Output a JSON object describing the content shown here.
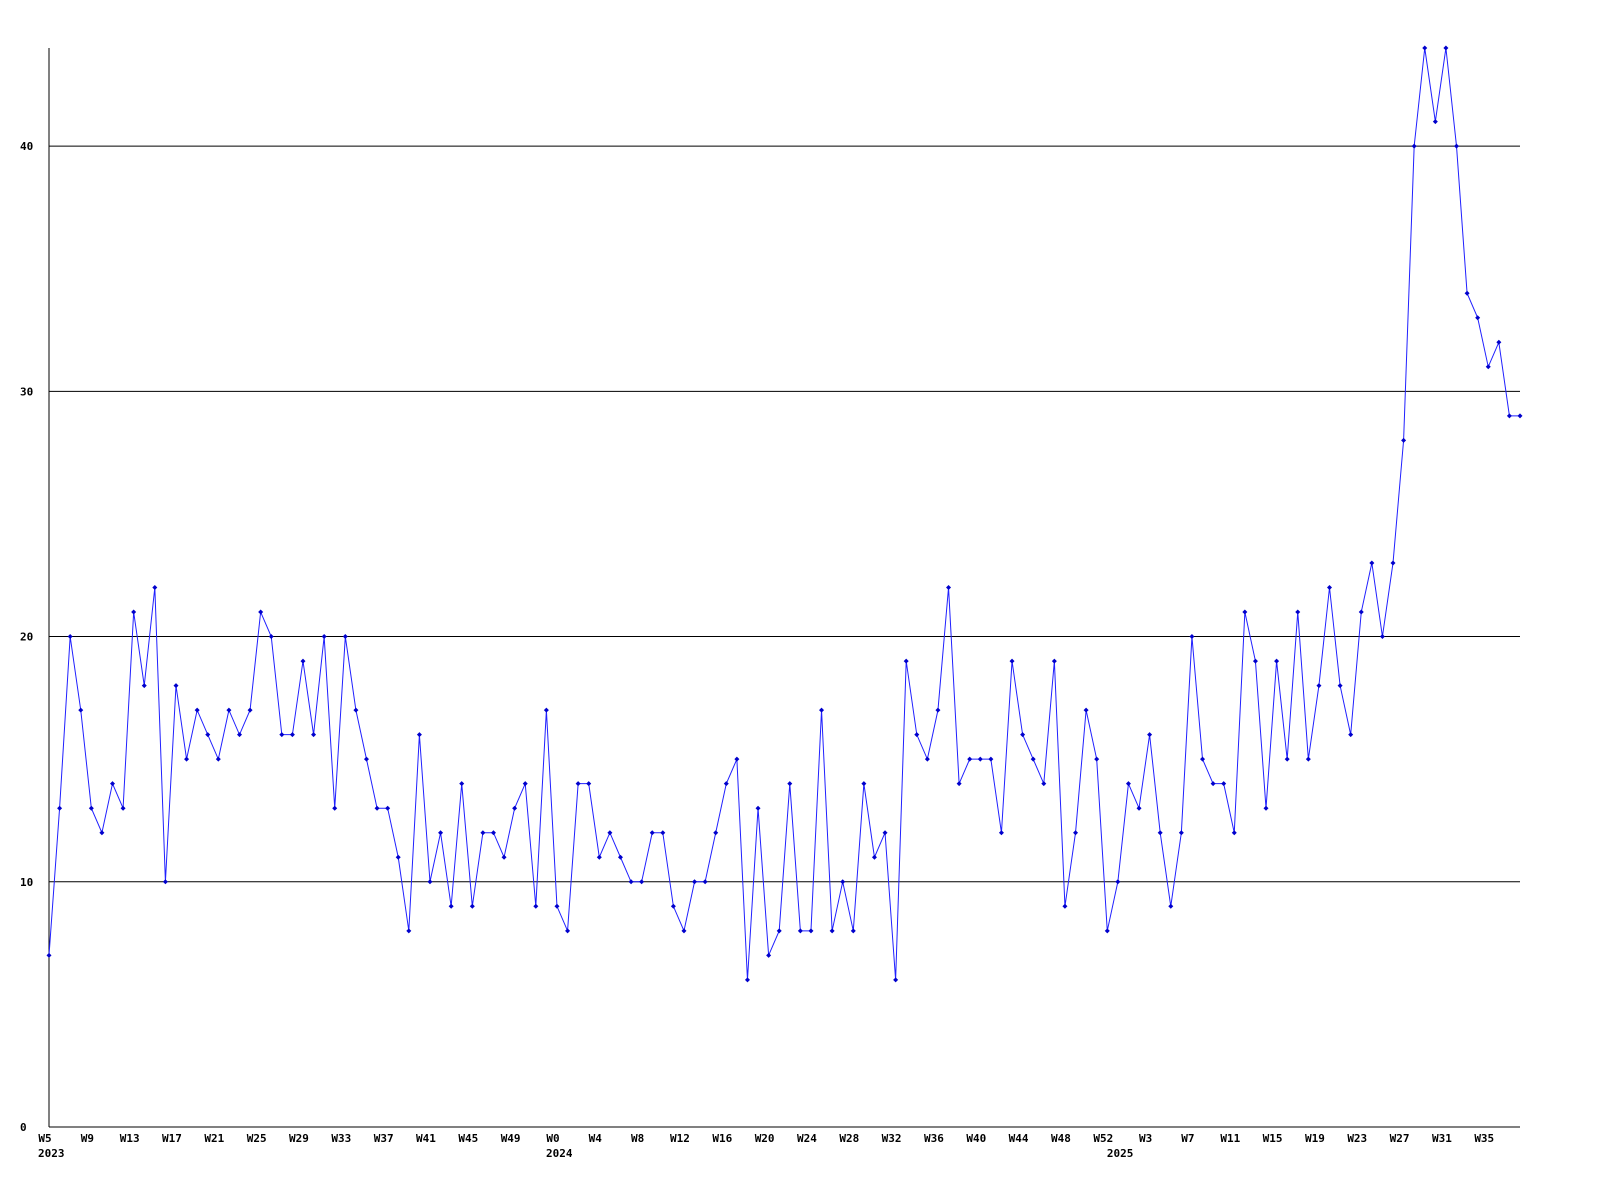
{
  "chart_data": {
    "type": "line",
    "categories": [
      "W5",
      null,
      null,
      null,
      "W9",
      null,
      null,
      null,
      "W13",
      null,
      null,
      null,
      "W17",
      null,
      null,
      null,
      "W21",
      null,
      null,
      null,
      "W25",
      null,
      null,
      null,
      "W29",
      null,
      null,
      null,
      "W33",
      null,
      null,
      null,
      "W37",
      null,
      null,
      null,
      "W41",
      null,
      null,
      null,
      "W45",
      null,
      null,
      null,
      "W49",
      null,
      null,
      null,
      "W0",
      null,
      null,
      null,
      "W4",
      null,
      null,
      null,
      "W8",
      null,
      null,
      null,
      "W12",
      null,
      null,
      null,
      "W16",
      null,
      null,
      null,
      "W20",
      null,
      null,
      null,
      "W24",
      null,
      null,
      null,
      "W28",
      null,
      null,
      null,
      "W32",
      null,
      null,
      null,
      "W36",
      null,
      null,
      null,
      "W40",
      null,
      null,
      null,
      "W44",
      null,
      null,
      null,
      "W48",
      null,
      null,
      null,
      "W52",
      null,
      null,
      null,
      "W3",
      null,
      null,
      null,
      "W7",
      null,
      null,
      null,
      "W11",
      null,
      null,
      null,
      "W15",
      null,
      null,
      null,
      "W19",
      null,
      null,
      null,
      "W23",
      null,
      null,
      null,
      "W27",
      null,
      null,
      null,
      "W31",
      null,
      null,
      null,
      "W35",
      null,
      null,
      null
    ],
    "year_labels": [
      {
        "at": 0,
        "label": "2023"
      },
      {
        "at": 48,
        "label": "2024"
      },
      {
        "at": 101,
        "label": "2025"
      }
    ],
    "series": [
      {
        "color": "#2020ff",
        "values": [
          7,
          13,
          20,
          17,
          13,
          12,
          14,
          13,
          21,
          18,
          22,
          10,
          18,
          15,
          17,
          16,
          15,
          17,
          16,
          17,
          21,
          20,
          16,
          16,
          19,
          16,
          20,
          13,
          20,
          17,
          15,
          13,
          13,
          11,
          8,
          16,
          10,
          12,
          9,
          14,
          9,
          12,
          12,
          11,
          13,
          14,
          9,
          17,
          9,
          8,
          14,
          14,
          11,
          12,
          11,
          10,
          10,
          12,
          12,
          9,
          8,
          10,
          10,
          12,
          14,
          15,
          6,
          13,
          7,
          8,
          14,
          8,
          8,
          17,
          8,
          10,
          8,
          14,
          11,
          12,
          6,
          19,
          16,
          15,
          17,
          22,
          14,
          15,
          15,
          15,
          12,
          19,
          16,
          15,
          14,
          19,
          9,
          12,
          17,
          15,
          8,
          10,
          14,
          13,
          16,
          12,
          9,
          12,
          20,
          15,
          14,
          14,
          12,
          21,
          19,
          13,
          19,
          15,
          21,
          15,
          18,
          22,
          18,
          16,
          21,
          23,
          20,
          23,
          28,
          40,
          44,
          41,
          44,
          40,
          34,
          33,
          31,
          32,
          29,
          29
        ]
      }
    ],
    "ylim": [
      0,
      44
    ],
    "yticks": [
      0,
      10,
      20,
      30,
      40
    ],
    "grid": true
  }
}
